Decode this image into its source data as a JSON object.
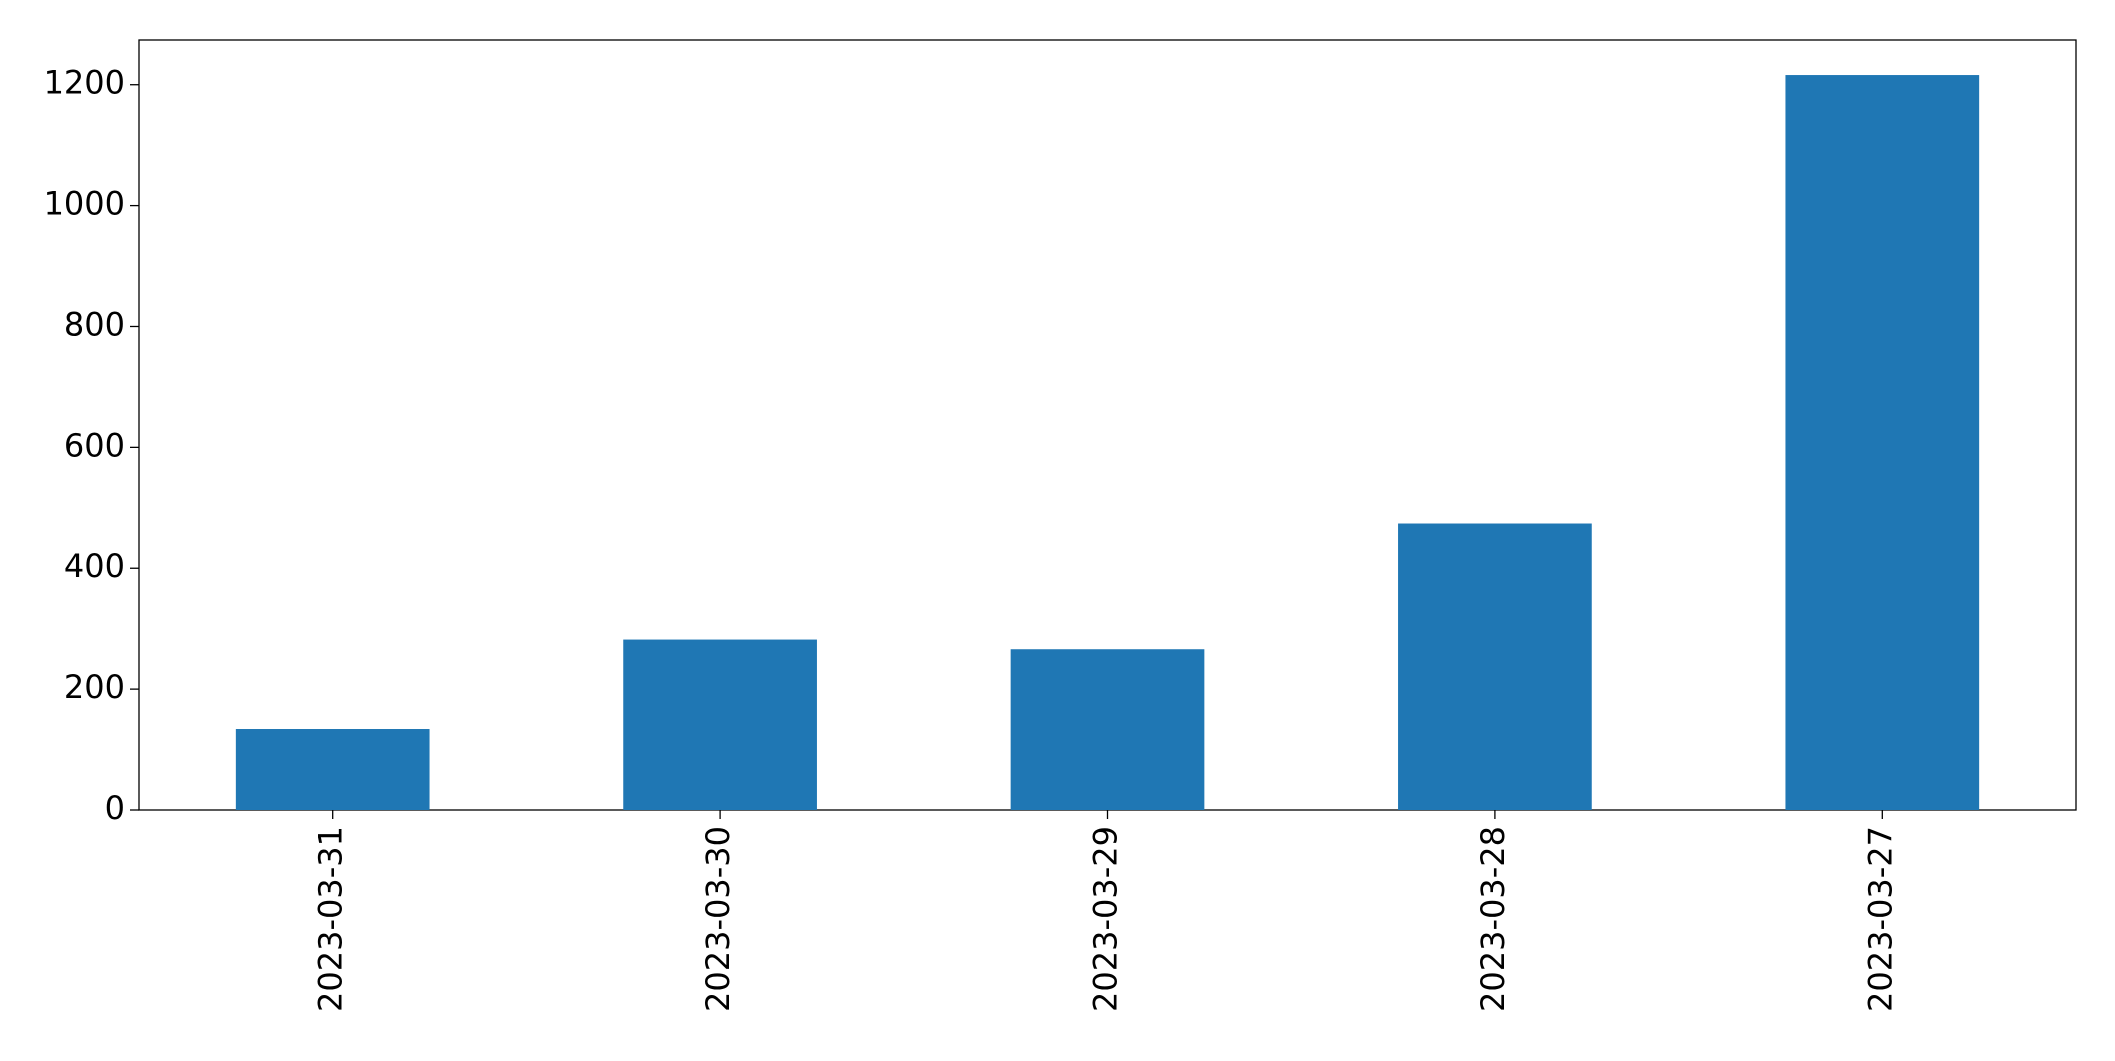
{
  "chart_data": {
    "type": "bar",
    "categories": [
      "2023-03-31",
      "2023-03-30",
      "2023-03-29",
      "2023-03-28",
      "2023-03-27"
    ],
    "values": [
      134,
      282,
      266,
      474,
      1216
    ],
    "color": "#1f77b4",
    "ylim": [
      0,
      1274
    ],
    "yticks": [
      0,
      200,
      400,
      600,
      800,
      1000,
      1200
    ],
    "grid": false
  }
}
